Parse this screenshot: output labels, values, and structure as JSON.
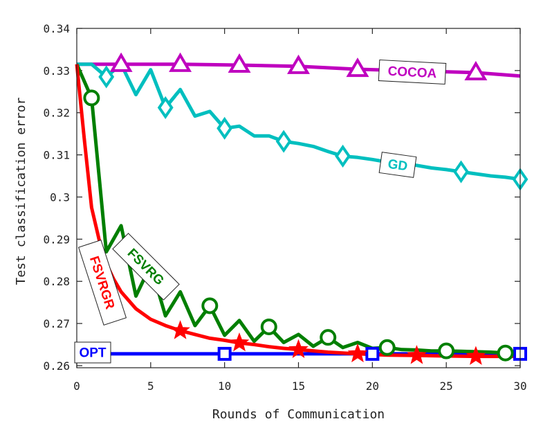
{
  "chart_data": {
    "type": "line",
    "xlabel": "Rounds of Communication",
    "ylabel": "Test classification error",
    "xlim": [
      0,
      30
    ],
    "ylim": [
      0.2595,
      0.34
    ],
    "x_ticks": [
      "0",
      "5",
      "10",
      "15",
      "20",
      "25",
      "30"
    ],
    "y_ticks": [
      "0.26",
      "0.27",
      "0.28",
      "0.29",
      "0.3",
      "0.31",
      "0.32",
      "0.33",
      "0.34"
    ],
    "series": [
      {
        "name": "COCOA",
        "color": "#bf00bf",
        "marker": "triangle",
        "x": [
          0,
          3,
          7,
          11,
          15,
          19,
          27,
          30
        ],
        "y": [
          0.3315,
          0.3315,
          0.3315,
          0.3313,
          0.331,
          0.3303,
          0.3295,
          0.3287
        ],
        "marker_x": [
          3,
          7,
          11,
          15,
          19,
          27
        ]
      },
      {
        "name": "GD",
        "color": "#00bfbf",
        "marker": "diamond",
        "x": [
          0,
          1,
          2,
          3,
          4,
          5,
          6,
          7,
          8,
          9,
          10,
          11,
          12,
          13,
          14,
          15,
          16,
          17,
          18,
          19,
          20,
          21,
          22,
          23,
          24,
          25,
          26,
          27,
          28,
          29,
          30
        ],
        "y": [
          0.3315,
          0.3315,
          0.3285,
          0.3315,
          0.3243,
          0.3302,
          0.3212,
          0.3255,
          0.3192,
          0.3203,
          0.3163,
          0.3168,
          0.3145,
          0.3145,
          0.3132,
          0.3127,
          0.312,
          0.3108,
          0.3097,
          0.3094,
          0.3089,
          0.3083,
          0.308,
          0.3075,
          0.3069,
          0.3065,
          0.306,
          0.3055,
          0.305,
          0.3047,
          0.3042
        ],
        "marker_x": [
          2,
          6,
          10,
          14,
          18,
          26,
          30
        ]
      },
      {
        "name": "FSVRG",
        "color": "#007f00",
        "marker": "circle",
        "x": [
          0,
          1,
          2,
          3,
          4,
          5,
          6,
          7,
          8,
          9,
          10,
          11,
          12,
          13,
          14,
          15,
          16,
          17,
          18,
          19,
          20,
          21,
          22,
          23,
          24,
          25,
          26,
          27,
          28,
          29,
          30
        ],
        "y": [
          0.3315,
          0.3235,
          0.287,
          0.2932,
          0.2765,
          0.2838,
          0.2718,
          0.2775,
          0.2695,
          0.2742,
          0.2672,
          0.2707,
          0.2658,
          0.2692,
          0.2655,
          0.2674,
          0.2646,
          0.2667,
          0.2643,
          0.2655,
          0.2641,
          0.2643,
          0.2638,
          0.2637,
          0.2635,
          0.2635,
          0.2634,
          0.2633,
          0.2632,
          0.263,
          0.2628
        ],
        "marker_x": [
          1,
          9,
          13,
          17,
          21,
          25,
          29
        ]
      },
      {
        "name": "FSVRGR",
        "color": "#ff0000",
        "marker": "star",
        "x": [
          0,
          0.5,
          1,
          1.5,
          2,
          2.5,
          3,
          4,
          5,
          6,
          7,
          8,
          9,
          10,
          11,
          12,
          13,
          14,
          15,
          17,
          19,
          21,
          23,
          25,
          27,
          29,
          30
        ],
        "y": [
          0.3315,
          0.314,
          0.2975,
          0.29,
          0.2842,
          0.2805,
          0.2775,
          0.2735,
          0.271,
          0.2695,
          0.2683,
          0.2674,
          0.2665,
          0.266,
          0.2654,
          0.265,
          0.2645,
          0.2641,
          0.2638,
          0.2632,
          0.2628,
          0.2625,
          0.2624,
          0.2623,
          0.2622,
          0.2622,
          0.2622
        ],
        "marker_x": [
          7,
          11,
          15,
          19,
          23,
          27
        ]
      },
      {
        "name": "OPT",
        "color": "#0000ff",
        "marker": "square",
        "x": [
          0,
          30
        ],
        "y": [
          0.2628,
          0.2628
        ],
        "marker_x": [
          10,
          20,
          30
        ]
      }
    ]
  }
}
